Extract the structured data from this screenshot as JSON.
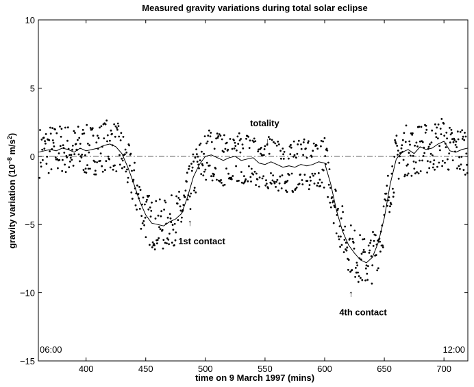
{
  "chart_data": {
    "type": "scatter",
    "title": "Measured gravity variations during total solar eclipse",
    "xlabel": "time on 9 March 1997 (mins)",
    "ylabel_main": "gravity variation (10",
    "ylabel_exp_minus": "−8",
    "ylabel_unit": " m/s",
    "ylabel_exp_two": "2",
    "ylabel_close": ")",
    "xlim": [
      360,
      720
    ],
    "ylim": [
      -15,
      10
    ],
    "xticks": [
      400,
      450,
      500,
      550,
      600,
      650,
      700
    ],
    "yticks": [
      10,
      5,
      0,
      -5,
      -10,
      -15
    ],
    "grid": false,
    "reference_line": {
      "y": 0,
      "style": "dash-dot"
    },
    "corner_labels": {
      "left": "06:00",
      "right": "12:00"
    },
    "annotations": [
      {
        "text": "totality",
        "arrow": "↓",
        "x": 552,
        "y": 1.0
      },
      {
        "text": "1st contact",
        "arrow": "↑",
        "x": 487,
        "y": -4.9
      },
      {
        "text": "4th contact",
        "arrow": "↑",
        "x": 622,
        "y": -10.1
      }
    ],
    "smoothed_curve": {
      "x": [
        360,
        365,
        370,
        375,
        380,
        385,
        390,
        395,
        400,
        405,
        410,
        415,
        420,
        425,
        430,
        435,
        440,
        445,
        450,
        455,
        460,
        465,
        470,
        475,
        480,
        485,
        490,
        495,
        500,
        505,
        510,
        515,
        520,
        525,
        530,
        535,
        540,
        545,
        550,
        555,
        560,
        565,
        570,
        575,
        580,
        585,
        590,
        595,
        600,
        605,
        610,
        615,
        620,
        625,
        630,
        635,
        640,
        645,
        650,
        655,
        660,
        665,
        670,
        675,
        680,
        685,
        690,
        695,
        700,
        705,
        710,
        715,
        720
      ],
      "y": [
        0.3,
        0.4,
        0.5,
        0.4,
        0.6,
        0.5,
        0.3,
        0.6,
        0.4,
        0.5,
        0.6,
        0.8,
        0.9,
        0.7,
        0.2,
        -0.8,
        -2.0,
        -3.3,
        -4.3,
        -4.9,
        -5.0,
        -5.1,
        -4.8,
        -4.6,
        -4.2,
        -3.0,
        -1.5,
        -0.6,
        0.0,
        0.1,
        -0.1,
        -0.3,
        -0.1,
        0.0,
        -0.3,
        -0.2,
        -0.1,
        -0.5,
        -0.6,
        -0.4,
        -0.6,
        -0.8,
        -0.7,
        -0.8,
        -0.6,
        -0.7,
        -0.6,
        -0.4,
        -0.5,
        -2.0,
        -4.0,
        -5.5,
        -6.5,
        -7.1,
        -7.6,
        -7.8,
        -7.4,
        -6.3,
        -4.5,
        -2.0,
        -0.2,
        0.3,
        0.5,
        0.2,
        0.7,
        0.5,
        0.6,
        0.9,
        1.1,
        0.4,
        0.3,
        0.5,
        0.6
      ]
    }
  }
}
